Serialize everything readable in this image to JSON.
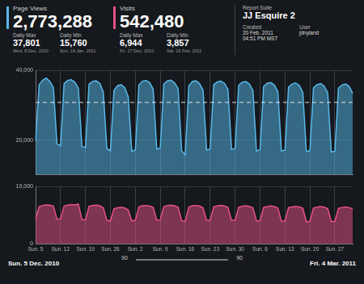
{
  "header": {
    "metrics": [
      {
        "label": "Page Views",
        "total": "2,773,288",
        "color": "#58b9ec",
        "daily_max": {
          "label": "Daily Max",
          "value": "37,801",
          "date": "Wed. 8 Dec. 2010"
        },
        "daily_min": {
          "label": "Daily Min",
          "value": "15,760",
          "date": "Sun. 16 Jan. 2011"
        }
      },
      {
        "label": "Visits",
        "total": "542,480",
        "color": "#e8508a",
        "daily_max": {
          "label": "Daily Max",
          "value": "6,944",
          "date": "Fri. 17 Dec. 2010"
        },
        "daily_min": {
          "label": "Daily Min",
          "value": "3,857",
          "date": "Sat. 19 Feb. 2011"
        }
      }
    ],
    "report": {
      "label": "Report Suite",
      "suite": "JJ Esquire 2",
      "created_label": "Created",
      "created_date": "20 Feb. 2011",
      "created_time": "04:51 PM MST",
      "user_label": "User",
      "user": "jdnyland"
    }
  },
  "footer": {
    "start": "Sun. 5 Dec. 2010",
    "end": "Fri. 4 Mar. 2011",
    "slider_left": "90",
    "slider_right": "90"
  },
  "chart_data": [
    {
      "type": "line",
      "grid": true,
      "tick_labels": "y",
      "categories": [
        "Sun. 5",
        null,
        null,
        null,
        null,
        null,
        null,
        "Sun. 12",
        null,
        null,
        null,
        null,
        null,
        null,
        "Sun. 19",
        null,
        null,
        null,
        null,
        null,
        null,
        "Sun. 26",
        null,
        null,
        null,
        null,
        null,
        null,
        "Sun. 2",
        null,
        null,
        null,
        null,
        null,
        null,
        "Sun. 9",
        null,
        null,
        null,
        null,
        null,
        null,
        "Sun. 16",
        null,
        null,
        null,
        null,
        null,
        null,
        "Sun. 23",
        null,
        null,
        null,
        null,
        null,
        null,
        "Sun. 30",
        null,
        null,
        null,
        null,
        null,
        null,
        "Sun. 6",
        null,
        null,
        null,
        null,
        null,
        null,
        "Sun. 13",
        null,
        null,
        null,
        null,
        null,
        null,
        "Sun. 20",
        null,
        null,
        null,
        null,
        null,
        null,
        "Sun. 27",
        null,
        null,
        null,
        null,
        null
      ],
      "series": [
        {
          "name": "Page Views",
          "color": "#58b9ec",
          "values": [
            19800,
            35900,
            37200,
            37801,
            36800,
            35100,
            18900,
            18400,
            36200,
            37100,
            37300,
            36600,
            34900,
            18200,
            17900,
            36000,
            36800,
            37000,
            36300,
            33800,
            17600,
            16900,
            34200,
            35600,
            35900,
            35100,
            32400,
            16800,
            17200,
            35800,
            36900,
            37100,
            36500,
            34600,
            17400,
            17800,
            36100,
            37000,
            37200,
            36400,
            34800,
            16900,
            15760,
            35500,
            36800,
            37000,
            36200,
            34300,
            17100,
            17500,
            35900,
            36700,
            36900,
            36300,
            34500,
            17300,
            17600,
            35700,
            36600,
            36800,
            36100,
            34200,
            16800,
            17300,
            35400,
            36300,
            36500,
            35800,
            33900,
            16900,
            17100,
            35200,
            36100,
            36400,
            35700,
            33700,
            16700,
            17000,
            35000,
            35900,
            36200,
            35500,
            33500,
            16600,
            16800,
            34900,
            35800,
            36100,
            35400,
            33400
          ]
        }
      ],
      "reference_line": {
        "value": 30800,
        "line_style": "dashed"
      },
      "ylim": [
        10000,
        40000
      ],
      "yticks": [
        {
          "value": 20000,
          "label": "20,000"
        },
        {
          "value": 40000,
          "label": "40,000"
        }
      ]
    },
    {
      "type": "line",
      "grid": true,
      "categories": [
        "Sun. 5",
        null,
        null,
        null,
        null,
        null,
        null,
        "Sun. 12",
        null,
        null,
        null,
        null,
        null,
        null,
        "Sun. 19",
        null,
        null,
        null,
        null,
        null,
        null,
        "Sun. 26",
        null,
        null,
        null,
        null,
        null,
        null,
        "Sun. 2",
        null,
        null,
        null,
        null,
        null,
        null,
        "Sun. 9",
        null,
        null,
        null,
        null,
        null,
        null,
        "Sun. 16",
        null,
        null,
        null,
        null,
        null,
        null,
        "Sun. 23",
        null,
        null,
        null,
        null,
        null,
        null,
        "Sun. 30",
        null,
        null,
        null,
        null,
        null,
        null,
        "Sun. 6",
        null,
        null,
        null,
        null,
        null,
        null,
        "Sun. 13",
        null,
        null,
        null,
        null,
        null,
        null,
        "Sun. 20",
        null,
        null,
        null,
        null,
        null,
        null,
        "Sun. 27",
        null,
        null,
        null,
        null,
        null
      ],
      "series": [
        {
          "name": "Visits",
          "color": "#e8508a",
          "values": [
            4400,
            6500,
            6700,
            6800,
            6750,
            6600,
            4300,
            4350,
            6600,
            6750,
            6850,
            6800,
            6944,
            4250,
            4200,
            6550,
            6700,
            6750,
            6650,
            6300,
            4100,
            4000,
            6100,
            6300,
            6350,
            6250,
            5900,
            4000,
            4100,
            6450,
            6650,
            6700,
            6600,
            6350,
            4150,
            4200,
            6500,
            6700,
            6750,
            6650,
            6400,
            4050,
            3950,
            6400,
            6650,
            6700,
            6600,
            6300,
            4100,
            4150,
            6450,
            6600,
            6700,
            6600,
            6350,
            4100,
            4100,
            6400,
            6550,
            6650,
            6550,
            6300,
            4000,
            4050,
            6350,
            6500,
            6600,
            6500,
            6250,
            3950,
            4000,
            6300,
            6450,
            6550,
            6450,
            6200,
            3857,
            3950,
            6250,
            6400,
            6500,
            6400,
            6150,
            3900,
            3900,
            6200,
            6350,
            6450,
            6350,
            6100
          ]
        }
      ],
      "ylim": [
        0,
        10000
      ],
      "yticks": [
        0,
        {
          "value": 10000,
          "label": "10,000"
        }
      ]
    }
  ]
}
